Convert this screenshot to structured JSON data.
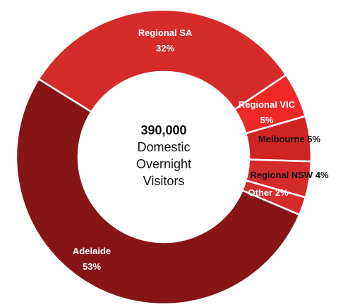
{
  "chart_data": {
    "type": "donut",
    "categories": [
      "Regional SA",
      "Regional VIC",
      "Melbourne",
      "Regional NSW",
      "Other",
      "Adelaide"
    ],
    "values": [
      32,
      5,
      5,
      4,
      2,
      53
    ],
    "value_labels": [
      "32%",
      "5%",
      "5%",
      "4%",
      "2%",
      "53%"
    ],
    "colors": [
      "#d52b2b",
      "#f02828",
      "#cf2424",
      "#d52b2b",
      "#d52b2b",
      "#861616"
    ],
    "center_label": [
      "390,000",
      "Domestic",
      "Overnight",
      "Visitors"
    ]
  }
}
